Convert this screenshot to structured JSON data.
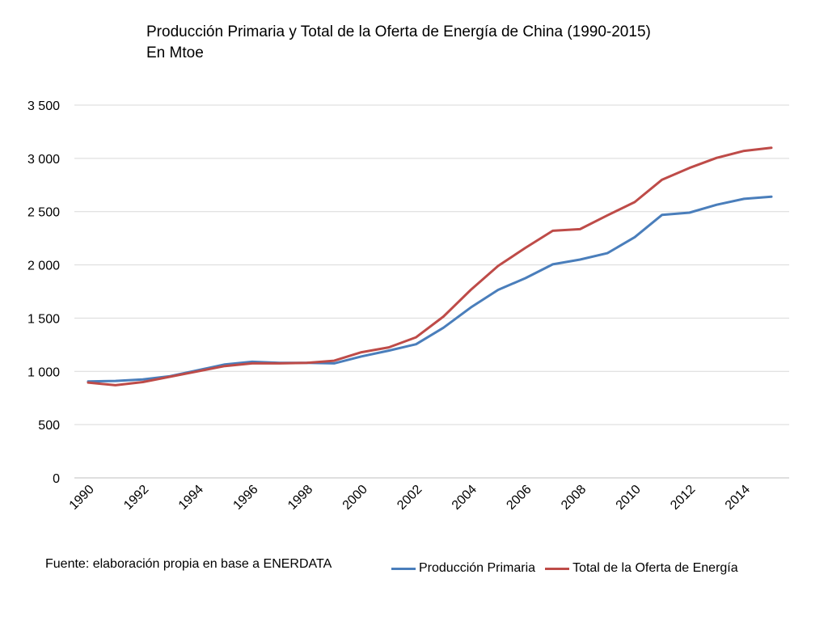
{
  "chart_data": {
    "type": "line",
    "title": "Producción Primaria y Total de la Oferta de Energía de China (1990-2015)",
    "subtitle": "En Mtoe",
    "x": [
      1990,
      1991,
      1992,
      1993,
      1994,
      1995,
      1996,
      1997,
      1998,
      1999,
      2000,
      2001,
      2002,
      2003,
      2004,
      2005,
      2006,
      2007,
      2008,
      2009,
      2010,
      2011,
      2012,
      2013,
      2014,
      2015
    ],
    "x_tick_labels": [
      "1990",
      "1992",
      "1994",
      "1996",
      "1998",
      "2000",
      "2002",
      "2004",
      "2006",
      "2008",
      "2010",
      "2012",
      "2014"
    ],
    "y_tick_labels": [
      "0",
      "500",
      "1 000",
      "1 500",
      "2 000",
      "2 500",
      "3 000",
      "3 500"
    ],
    "ylim": [
      0,
      3500
    ],
    "grid": true,
    "legend_position": "bottom-right",
    "series": [
      {
        "name": "Producción Primaria",
        "color": "#4A7EBB",
        "values": [
          905,
          910,
          925,
          955,
          1010,
          1065,
          1090,
          1080,
          1080,
          1075,
          1140,
          1195,
          1255,
          1410,
          1600,
          1765,
          1875,
          2005,
          2050,
          2110,
          2260,
          2470,
          2490,
          2565,
          2620,
          2640
        ]
      },
      {
        "name": "Total de la Oferta de Energía",
        "color": "#BE4B48",
        "values": [
          895,
          870,
          900,
          950,
          1000,
          1050,
          1075,
          1075,
          1080,
          1100,
          1180,
          1225,
          1320,
          1515,
          1765,
          1990,
          2160,
          2320,
          2335,
          2465,
          2590,
          2800,
          2910,
          3005,
          3070,
          3100
        ]
      }
    ]
  },
  "source": "Fuente: elaboración propia en base a ENERDATA"
}
